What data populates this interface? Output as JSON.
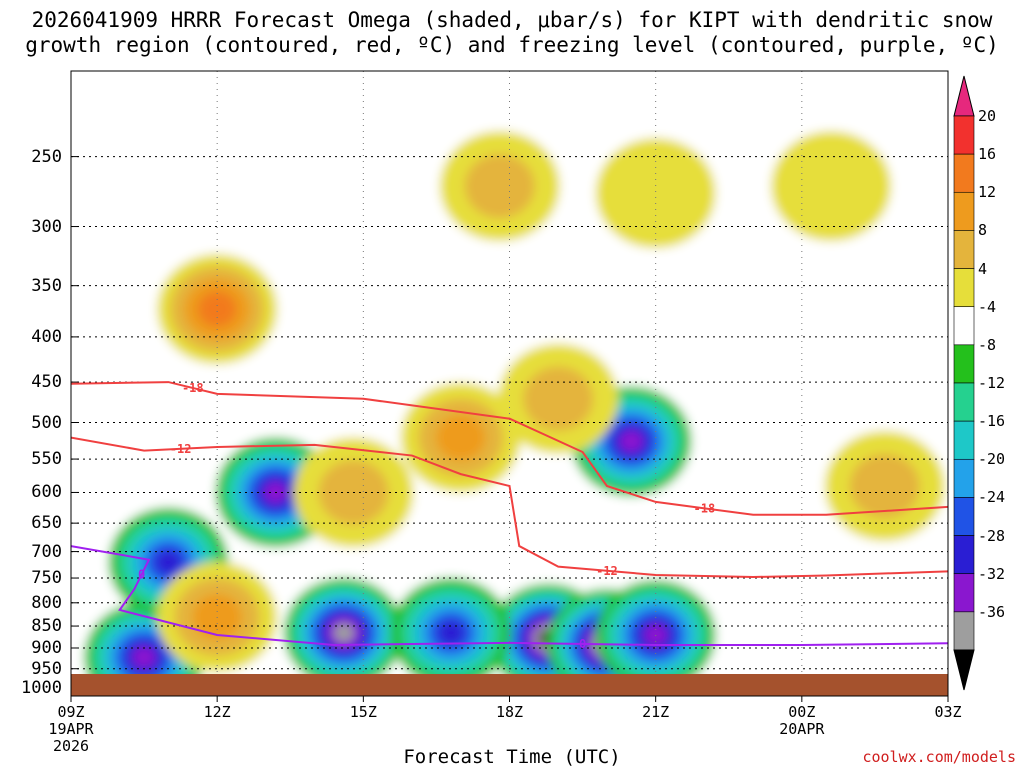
{
  "title": {
    "line1": "2026041909 HRRR Forecast Omega (shaded, μbar/s) for KIPT with dendritic snow",
    "line2": "growth region (contoured, red, ºC) and freezing level (contoured, purple, ºC)"
  },
  "chart_data": {
    "type": "heatmap",
    "xlabel": "Forecast Time (UTC)",
    "x_ticks": [
      {
        "hour": 0,
        "label": "09Z",
        "sub1": "19APR",
        "sub2": "2026"
      },
      {
        "hour": 3,
        "label": "12Z"
      },
      {
        "hour": 6,
        "label": "15Z"
      },
      {
        "hour": 9,
        "label": "18Z"
      },
      {
        "hour": 12,
        "label": "21Z"
      },
      {
        "hour": 15,
        "label": "00Z",
        "sub1": "20APR"
      },
      {
        "hour": 18,
        "label": "03Z"
      }
    ],
    "y_ticks": [
      250,
      300,
      350,
      400,
      450,
      500,
      550,
      600,
      650,
      700,
      750,
      800,
      850,
      900,
      950,
      1000
    ],
    "ylim": [
      200,
      1020
    ],
    "y_scale": "log-pressure (inverted)",
    "grid": true,
    "colorbar": {
      "levels": [
        20,
        16,
        12,
        8,
        4,
        -4,
        -8,
        -12,
        -16,
        -20,
        -24,
        -28,
        -32,
        -36
      ],
      "colors": [
        "#e6287d",
        "#f2312e",
        "#f27a1e",
        "#ee9b1e",
        "#e4b43c",
        "#e6de3a",
        "#ffffff",
        "#24c01c",
        "#25d18f",
        "#1ec8c8",
        "#23a2ea",
        "#2053e6",
        "#2a1ed3",
        "#8a17cf",
        "#9e9e9e",
        "#000000"
      ]
    },
    "contours": [
      {
        "name": "-18",
        "color": "#f04040",
        "points": [
          [
            0,
            452
          ],
          [
            2,
            450
          ],
          [
            3,
            464
          ],
          [
            6,
            470
          ],
          [
            9,
            495
          ],
          [
            10.5,
            540
          ],
          [
            11,
            590
          ],
          [
            12,
            615
          ],
          [
            14,
            636
          ],
          [
            15.5,
            636
          ],
          [
            18,
            623
          ]
        ]
      },
      {
        "name": "-12",
        "color": "#f04040",
        "points": [
          [
            0,
            520
          ],
          [
            1.5,
            538
          ],
          [
            3,
            533
          ],
          [
            5,
            530
          ],
          [
            7,
            545
          ],
          [
            8,
            572
          ],
          [
            9,
            590
          ],
          [
            9.2,
            690
          ],
          [
            10,
            728
          ],
          [
            12,
            744
          ],
          [
            14,
            748
          ],
          [
            15.5,
            745
          ],
          [
            18,
            737
          ]
        ]
      },
      {
        "name": "0",
        "color": "#a020f0",
        "points": [
          [
            0,
            690
          ],
          [
            1.6,
            715
          ],
          [
            1.3,
            772
          ],
          [
            1,
            815
          ],
          [
            3,
            870
          ],
          [
            5.4,
            893
          ],
          [
            9,
            888
          ],
          [
            12,
            893
          ],
          [
            15,
            893
          ],
          [
            18,
            889
          ]
        ]
      }
    ],
    "omega_features": [
      {
        "hour": 9.8,
        "p": 878,
        "value": -38
      },
      {
        "hour": 11,
        "p": 890,
        "value": -38
      },
      {
        "hour": 12,
        "p": 870,
        "value": -30
      },
      {
        "hour": 1.5,
        "p": 922,
        "value": -30
      },
      {
        "hour": 5.6,
        "p": 865,
        "value": -34
      },
      {
        "hour": 4.2,
        "p": 600,
        "value": -30
      },
      {
        "hour": 2,
        "p": 720,
        "value": -24
      },
      {
        "hour": 7.8,
        "p": 865,
        "value": -24
      },
      {
        "hour": 11.5,
        "p": 525,
        "value": -28
      },
      {
        "hour": 3,
        "p": 372,
        "value": 18
      },
      {
        "hour": 8,
        "p": 520,
        "value": 14
      },
      {
        "hour": 3,
        "p": 830,
        "value": 12
      },
      {
        "hour": 5.8,
        "p": 600,
        "value": 10
      },
      {
        "hour": 8.8,
        "p": 270,
        "value": 8
      },
      {
        "hour": 12,
        "p": 275,
        "value": 6
      },
      {
        "hour": 15.6,
        "p": 270,
        "value": 6
      },
      {
        "hour": 16.7,
        "p": 590,
        "value": 10
      },
      {
        "hour": 10,
        "p": 470,
        "value": 8
      }
    ],
    "surface_label": ""
  },
  "credit": "coolwx.com/models"
}
